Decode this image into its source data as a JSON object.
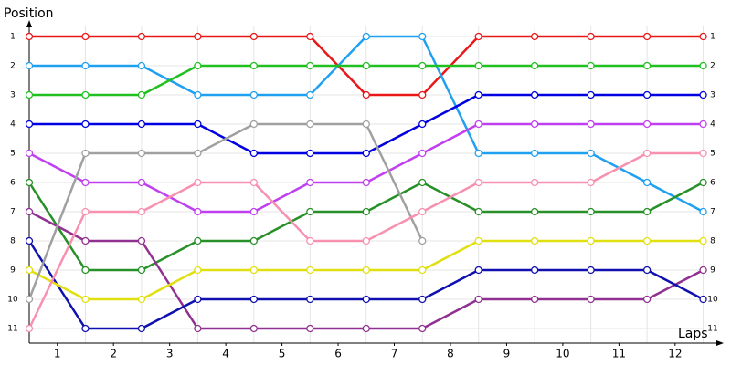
{
  "chart_data": {
    "type": "line",
    "y_label": "Position",
    "x_label": "Laps",
    "x": [
      0,
      1,
      2,
      3,
      4,
      5,
      6,
      7,
      8,
      9,
      10,
      11,
      12
    ],
    "xlim": [
      0,
      12.3
    ],
    "xticks": [
      {
        "value": 0.5,
        "label": "1"
      },
      {
        "value": 1.5,
        "label": "2"
      },
      {
        "value": 2.5,
        "label": "3"
      },
      {
        "value": 3.5,
        "label": "4"
      },
      {
        "value": 4.5,
        "label": "5"
      },
      {
        "value": 5.5,
        "label": "6"
      },
      {
        "value": 6.5,
        "label": "7"
      },
      {
        "value": 7.5,
        "label": "8"
      },
      {
        "value": 8.5,
        "label": "9"
      },
      {
        "value": 9.5,
        "label": "10"
      },
      {
        "value": 10.5,
        "label": "11"
      },
      {
        "value": 11.5,
        "label": "12"
      }
    ],
    "ylim": [
      11.5,
      0.5
    ],
    "yticks": [
      1,
      2,
      3,
      4,
      5,
      6,
      7,
      8,
      9,
      10,
      11
    ],
    "grid": true,
    "series": [
      {
        "color": "#e81818",
        "values": [
          1,
          1,
          1,
          1,
          1,
          1,
          3,
          3,
          1,
          1,
          1,
          1,
          1
        ]
      },
      {
        "color": "#20a0f0",
        "values": [
          2,
          2,
          2,
          3,
          3,
          3,
          1,
          1,
          5,
          5,
          5,
          6,
          7
        ]
      },
      {
        "color": "#20c020",
        "values": [
          3,
          3,
          3,
          2,
          2,
          2,
          2,
          2,
          2,
          2,
          2,
          2,
          2
        ]
      },
      {
        "color": "#0000e0",
        "values": [
          4,
          4,
          4,
          4,
          5,
          5,
          5,
          4,
          3,
          3,
          3,
          3,
          3
        ]
      },
      {
        "color": "#c040f0",
        "values": [
          5,
          6,
          6,
          7,
          7,
          6,
          6,
          5,
          4,
          4,
          4,
          4,
          4
        ]
      },
      {
        "color": "#289028",
        "values": [
          6,
          9,
          9,
          8,
          8,
          7,
          7,
          6,
          7,
          7,
          7,
          7,
          6
        ]
      },
      {
        "color": "#903090",
        "values": [
          7,
          8,
          8,
          11,
          11,
          11,
          11,
          11,
          10,
          10,
          10,
          10,
          9
        ]
      },
      {
        "color": "#1010b0",
        "values": [
          8,
          11,
          11,
          10,
          10,
          10,
          10,
          10,
          9,
          9,
          9,
          9,
          10
        ]
      },
      {
        "color": "#e0e010",
        "values": [
          9,
          10,
          10,
          9,
          9,
          9,
          9,
          9,
          8,
          8,
          8,
          8,
          8
        ]
      },
      {
        "color": "#a0a0a0",
        "values": [
          10,
          5,
          5,
          5,
          4,
          4,
          4,
          8,
          null,
          null,
          null,
          null,
          null
        ]
      },
      {
        "color": "#f890b0",
        "values": [
          11,
          7,
          7,
          6,
          6,
          8,
          8,
          7,
          6,
          6,
          6,
          5,
          5
        ]
      }
    ]
  }
}
